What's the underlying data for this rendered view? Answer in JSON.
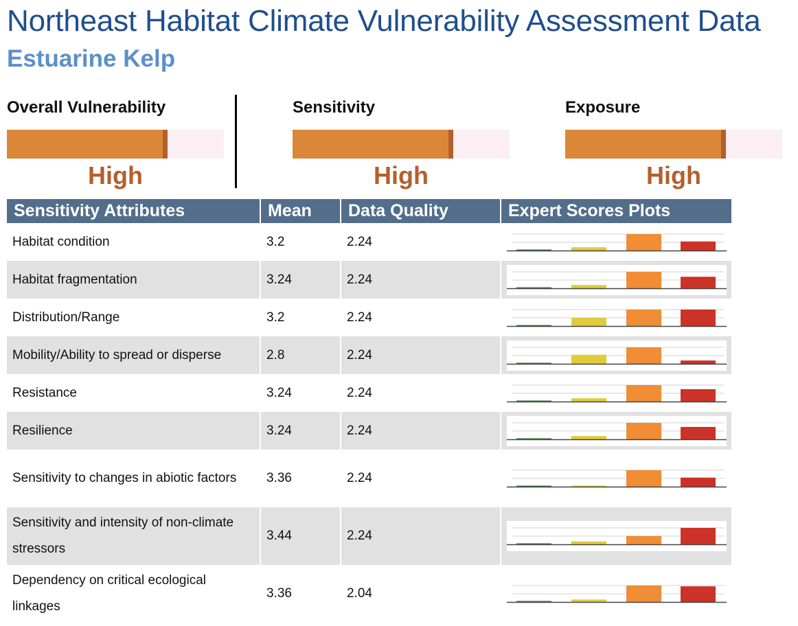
{
  "header": {
    "title": "Northeast Habitat Climate Vulnerability Assessment Data",
    "subtitle": "Estuarine Kelp"
  },
  "gauges": [
    {
      "label": "Overall Vulnerability",
      "rating": "High",
      "level": 0.74
    },
    {
      "label": "Sensitivity",
      "rating": "High",
      "level": 0.74
    },
    {
      "label": "Exposure",
      "rating": "High",
      "level": 0.74
    }
  ],
  "colors": {
    "gauge_fill": "#db8739",
    "gauge_marker": "#b3602b",
    "gauge_track": "#fbeff3",
    "rating_text": "#b45f2d",
    "header_bg": "#536e8a",
    "score_low": "#3c7a3c",
    "score_moderate": "#e0cb3b",
    "score_high": "#f08d35",
    "score_very_high": "#cc3227"
  },
  "table": {
    "headers": [
      "Sensitivity Attributes",
      "Mean",
      "Data Quality",
      "Expert Scores Plots"
    ],
    "rows": [
      {
        "attribute": "Habitat condition",
        "mean": "3.2",
        "data_quality": "2.24",
        "scores": [
          0.02,
          0.2,
          1.0,
          0.55
        ]
      },
      {
        "attribute": "Habitat fragmentation",
        "mean": "3.24",
        "data_quality": "2.24",
        "scores": [
          0.02,
          0.2,
          1.0,
          0.7
        ]
      },
      {
        "attribute": "Distribution/Range",
        "mean": "3.2",
        "data_quality": "2.24",
        "scores": [
          0.02,
          0.5,
          1.0,
          1.0
        ]
      },
      {
        "attribute": "Mobility/Ability to spread or disperse",
        "mean": "2.8",
        "data_quality": "2.24",
        "scores": [
          0.02,
          0.55,
          1.0,
          0.2
        ]
      },
      {
        "attribute": "Resistance",
        "mean": "3.24",
        "data_quality": "2.24",
        "scores": [
          0.02,
          0.2,
          1.0,
          0.75
        ]
      },
      {
        "attribute": "Resilience",
        "mean": "3.24",
        "data_quality": "2.24",
        "scores": [
          0.02,
          0.2,
          1.0,
          0.75
        ]
      },
      {
        "attribute": "Sensitivity to changes in abiotic factors",
        "mean": "3.36",
        "data_quality": "2.24",
        "scores": [
          0.02,
          0.03,
          1.0,
          0.55
        ]
      },
      {
        "attribute": "Sensitivity and intensity of non-climate stressors",
        "mean": "3.44",
        "data_quality": "2.24",
        "scores": [
          0.02,
          0.18,
          0.5,
          1.0
        ]
      },
      {
        "attribute": "Dependency on critical ecological linkages",
        "mean": "3.36",
        "data_quality": "2.04",
        "scores": [
          0.02,
          0.15,
          1.0,
          0.95
        ]
      }
    ]
  }
}
